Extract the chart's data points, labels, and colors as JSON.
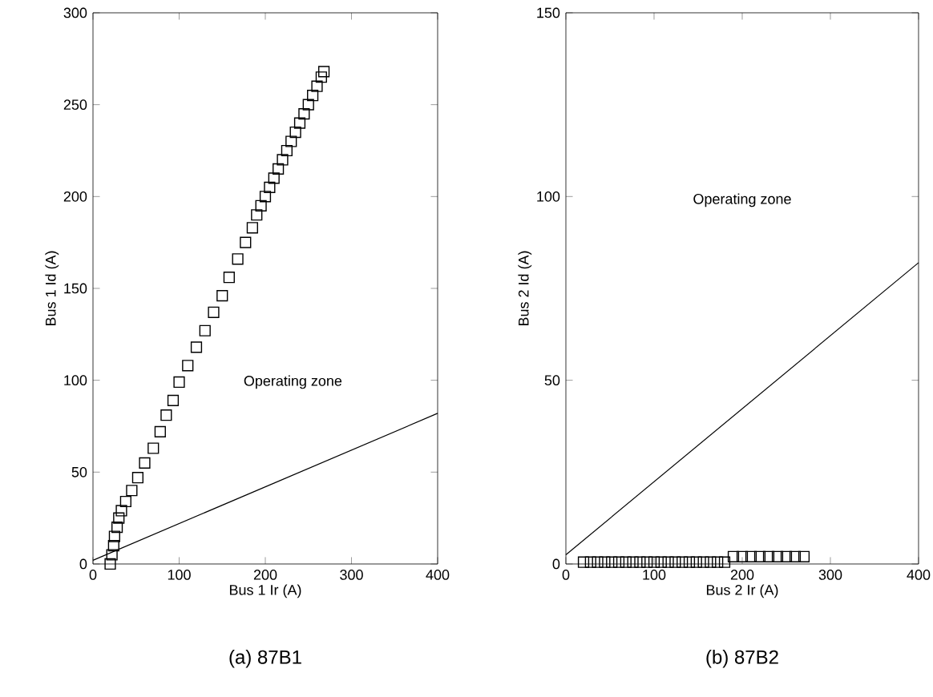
{
  "chart_data": [
    {
      "type": "scatter",
      "title": "(a) 87B1",
      "xlabel": "Bus 1 Ir (A)",
      "ylabel": "Bus 1 Id (A)",
      "annotations": [
        "Operating zone"
      ],
      "xlim": [
        0,
        400
      ],
      "ylim": [
        0,
        300
      ],
      "xticks": [
        0,
        100,
        200,
        300,
        400
      ],
      "yticks": [
        0,
        50,
        100,
        150,
        200,
        250,
        300
      ],
      "series": [
        {
          "color": "#000000",
          "marker": "square",
          "x": [
            20,
            22,
            24,
            25,
            28,
            30,
            33,
            38,
            45,
            52,
            60,
            70,
            78,
            85,
            93,
            100,
            110,
            120,
            130,
            140,
            150,
            158,
            168,
            177,
            185,
            190,
            195,
            200,
            205,
            210,
            215,
            220,
            225,
            230,
            235,
            240,
            245,
            250,
            255,
            260,
            265,
            268
          ],
          "values": [
            0,
            5,
            10,
            15,
            20,
            25,
            29,
            34,
            40,
            47,
            55,
            63,
            72,
            81,
            89,
            99,
            108,
            118,
            127,
            137,
            146,
            156,
            166,
            175,
            183,
            190,
            195,
            200,
            205,
            210,
            215,
            220,
            225,
            230,
            235,
            240,
            245,
            250,
            255,
            260,
            265,
            268
          ]
        },
        {
          "type": "line",
          "color": "#000000",
          "x": [
            0,
            400
          ],
          "values": [
            2,
            82
          ]
        }
      ]
    },
    {
      "type": "scatter",
      "title": "(b) 87B2",
      "xlabel": "Bus 2 Ir (A)",
      "ylabel": "Bus 2 Id (A)",
      "annotations": [
        "Operating zone"
      ],
      "xlim": [
        0,
        400
      ],
      "ylim": [
        0,
        150
      ],
      "xticks": [
        0,
        100,
        200,
        300,
        400
      ],
      "yticks": [
        0,
        50,
        100,
        150
      ],
      "series": [
        {
          "color": "#000000",
          "marker": "square",
          "x": [
            20,
            28,
            36,
            44,
            52,
            60,
            68,
            76,
            84,
            92,
            100,
            108,
            116,
            124,
            132,
            140,
            148,
            156,
            164,
            172,
            180,
            190,
            200,
            210,
            220,
            230,
            240,
            250,
            260,
            270
          ],
          "values": [
            0.5,
            0.5,
            0.5,
            0.5,
            0.5,
            0.5,
            0.5,
            0.5,
            0.5,
            0.5,
            0.5,
            0.5,
            0.5,
            0.5,
            0.5,
            0.5,
            0.5,
            0.5,
            0.5,
            0.5,
            0.5,
            2,
            2,
            2,
            2,
            2,
            2,
            2,
            2,
            2
          ]
        },
        {
          "type": "line",
          "color": "#000000",
          "x": [
            0,
            400
          ],
          "values": [
            2.5,
            82
          ]
        }
      ]
    }
  ]
}
